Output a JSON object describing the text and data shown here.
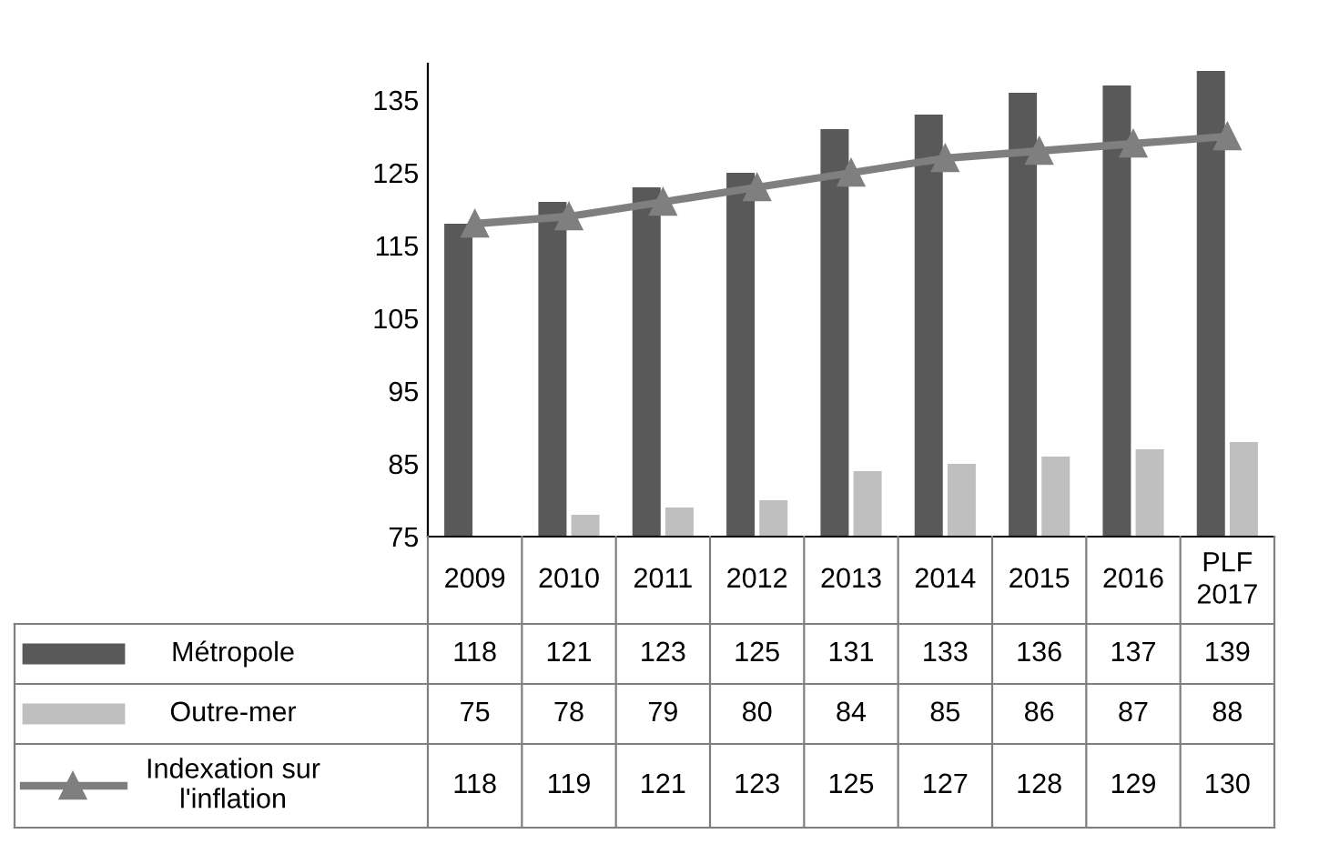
{
  "chart_data": {
    "type": "bar",
    "categories": [
      "2009",
      "2010",
      "2011",
      "2012",
      "2013",
      "2014",
      "2015",
      "2016",
      "PLF\n2017"
    ],
    "series": [
      {
        "name": "Métropole",
        "color": "#595959",
        "values": [
          118,
          121,
          123,
          125,
          131,
          133,
          136,
          137,
          139
        ]
      },
      {
        "name": "Outre-mer",
        "color": "#bfbfbf",
        "values": [
          75,
          78,
          79,
          80,
          84,
          85,
          86,
          87,
          88
        ]
      },
      {
        "name": "Indexation sur\nl'inflation",
        "type": "line",
        "color": "#7f7f7f",
        "marker": "triangle",
        "values": [
          118,
          119,
          121,
          123,
          125,
          127,
          128,
          129,
          130
        ]
      }
    ],
    "ylim": [
      75,
      140
    ],
    "yticks": [
      75,
      85,
      95,
      105,
      115,
      125,
      135
    ],
    "grid": false,
    "legend": "bottom",
    "data_labels": true
  }
}
